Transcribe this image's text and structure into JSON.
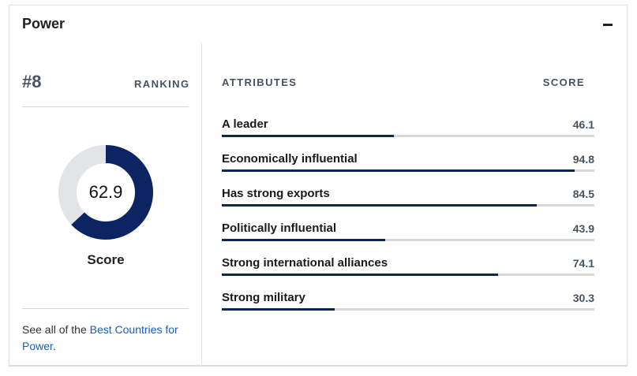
{
  "panel": {
    "title": "Power",
    "collapse_icon": "minus-icon"
  },
  "ranking": {
    "value": "#8",
    "label": "RANKING"
  },
  "score": {
    "value": "62.9",
    "numeric": 62.9,
    "max": 100,
    "label": "Score",
    "colors": {
      "fill": "#0c2462",
      "track": "#e2e4e8"
    }
  },
  "see_all": {
    "prefix": "See all of the ",
    "link_text": "Best Countries for Power",
    "suffix": "."
  },
  "attributes": {
    "header_left": "ATTRIBUTES",
    "header_right": "SCORE",
    "items": [
      {
        "label": "A leader",
        "score": "46.1",
        "value": 46.1
      },
      {
        "label": "Economically influential",
        "score": "94.8",
        "value": 94.8
      },
      {
        "label": "Has strong exports",
        "score": "84.5",
        "value": 84.5
      },
      {
        "label": "Politically influential",
        "score": "43.9",
        "value": 43.9
      },
      {
        "label": "Strong international alliances",
        "score": "74.1",
        "value": 74.1
      },
      {
        "label": "Strong military",
        "score": "30.3",
        "value": 30.3
      }
    ]
  },
  "colors": {
    "bar_fill": "#0c2462",
    "bar_track": "#d9d9d9",
    "link": "#1560bd"
  }
}
